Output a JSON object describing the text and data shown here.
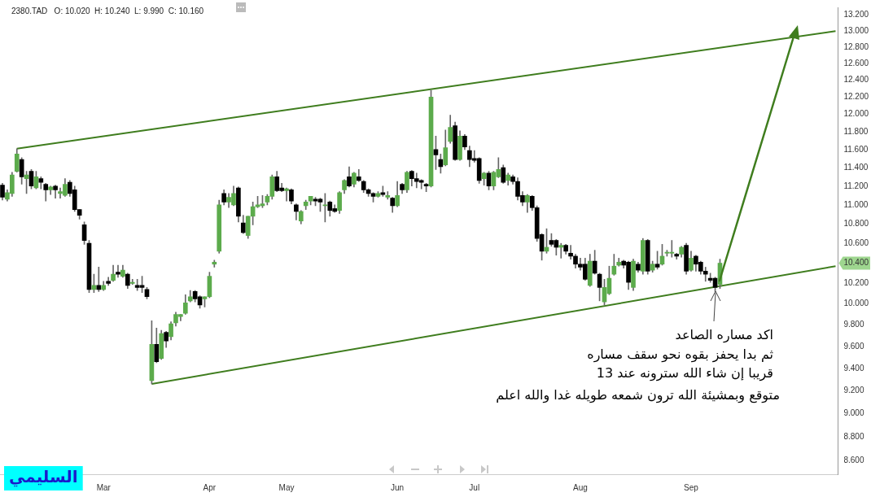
{
  "chart_data": {
    "type": "candlestick",
    "categories": [
      null,
      null,
      null,
      null,
      null,
      null,
      null,
      null,
      null,
      null,
      null,
      null,
      null,
      null,
      null,
      null,
      null,
      null,
      null,
      null,
      null,
      "Mar",
      null,
      null,
      null,
      null,
      null,
      null,
      null,
      null,
      null,
      null,
      null,
      null,
      null,
      null,
      null,
      null,
      null,
      null,
      null,
      null,
      null,
      "Apr",
      null,
      null,
      null,
      null,
      null,
      null,
      null,
      null,
      null,
      null,
      null,
      null,
      null,
      null,
      null,
      "May",
      null,
      null,
      null,
      null,
      null,
      null,
      null,
      null,
      null,
      null,
      null,
      null,
      null,
      null,
      null,
      null,
      null,
      null,
      null,
      null,
      null,
      null,
      "Jun",
      null,
      null,
      null,
      null,
      null,
      null,
      null,
      null,
      null,
      null,
      null,
      null,
      null,
      null,
      null,
      "Jul",
      null,
      null,
      null,
      null,
      null,
      null,
      null,
      null,
      null,
      null,
      null,
      null,
      null,
      null,
      null,
      null,
      null,
      null,
      null,
      null,
      null,
      "Aug",
      null,
      null,
      null,
      null,
      null,
      null,
      null,
      null,
      null,
      null,
      null,
      null,
      null,
      null,
      null,
      null,
      null,
      null,
      null,
      null,
      null,
      null,
      "Sep",
      null,
      null,
      null,
      null,
      null,
      null,
      null,
      null,
      null,
      null,
      null,
      null,
      null,
      null,
      null,
      null,
      null,
      null,
      null,
      null,
      null,
      null,
      null,
      null,
      null,
      null,
      null,
      null,
      null,
      null
    ],
    "ohlc": [
      [
        11.21,
        11.23,
        11.05,
        11.08
      ],
      [
        11.06,
        11.16,
        11.04,
        11.13
      ],
      [
        11.12,
        11.35,
        11.09,
        11.32
      ],
      [
        11.36,
        11.61,
        11.35,
        11.55
      ],
      [
        11.49,
        11.51,
        11.22,
        11.3
      ],
      [
        11.28,
        11.36,
        11.12,
        11.32
      ],
      [
        11.36,
        11.38,
        11.17,
        11.2
      ],
      [
        11.18,
        11.36,
        11.17,
        11.3
      ],
      [
        11.28,
        11.3,
        11.17,
        11.24
      ],
      [
        11.22,
        11.23,
        11.04,
        11.16
      ],
      [
        11.16,
        11.2,
        11.11,
        11.19
      ],
      [
        11.2,
        11.21,
        11.07,
        11.16
      ],
      [
        11.12,
        11.18,
        11.07,
        11.14
      ],
      [
        11.1,
        11.28,
        11.09,
        11.22
      ],
      [
        11.24,
        11.26,
        11.09,
        11.12
      ],
      [
        11.16,
        11.2,
        10.93,
        10.95
      ],
      [
        10.95,
        10.95,
        10.85,
        10.89
      ],
      [
        10.79,
        10.82,
        10.59,
        10.63
      ],
      [
        10.6,
        10.63,
        10.11,
        10.14
      ],
      [
        10.14,
        10.29,
        10.11,
        10.18
      ],
      [
        10.18,
        10.36,
        10.12,
        10.14
      ],
      [
        10.14,
        10.22,
        10.13,
        10.18
      ],
      [
        10.22,
        10.26,
        10.18,
        10.2
      ],
      [
        10.23,
        10.38,
        10.22,
        10.29
      ],
      [
        10.31,
        10.38,
        10.26,
        10.29
      ],
      [
        10.27,
        10.38,
        10.26,
        10.33
      ],
      [
        10.29,
        10.3,
        10.15,
        10.18
      ],
      [
        10.2,
        10.24,
        10.19,
        10.21
      ],
      [
        10.18,
        10.24,
        10.13,
        10.16
      ],
      [
        10.18,
        10.27,
        10.11,
        10.16
      ],
      [
        10.14,
        10.16,
        10.05,
        10.07
      ],
      [
        9.29,
        9.84,
        9.26,
        9.62
      ],
      [
        9.62,
        9.77,
        9.45,
        9.46
      ],
      [
        9.49,
        9.75,
        9.48,
        9.72
      ],
      [
        9.73,
        9.74,
        9.59,
        9.65
      ],
      [
        9.69,
        9.83,
        9.66,
        9.81
      ],
      [
        9.82,
        9.92,
        9.79,
        9.9
      ],
      [
        9.88,
        9.9,
        9.84,
        9.9
      ],
      [
        9.91,
        10.09,
        9.9,
        10.01
      ],
      [
        10.03,
        10.13,
        10.02,
        10.07
      ],
      [
        10.12,
        10.13,
        10.02,
        10.05
      ],
      [
        10.07,
        10.08,
        9.96,
        9.99
      ],
      [
        10.05,
        10.07,
        9.97,
        10.07
      ],
      [
        10.07,
        10.31,
        10.06,
        10.27
      ],
      [
        10.39,
        10.43,
        10.36,
        10.41
      ],
      [
        10.52,
        11.05,
        10.5,
        11.0
      ],
      [
        11.12,
        11.16,
        11.0,
        11.03
      ],
      [
        11.03,
        11.12,
        10.97,
        11.08
      ],
      [
        11.0,
        11.2,
        10.99,
        11.12
      ],
      [
        11.18,
        11.19,
        10.82,
        10.88
      ],
      [
        10.81,
        10.89,
        10.7,
        10.71
      ],
      [
        10.68,
        10.88,
        10.65,
        10.88
      ],
      [
        10.88,
        11.03,
        10.79,
        10.98
      ],
      [
        10.98,
        11.09,
        10.97,
        11.0
      ],
      [
        10.99,
        11.1,
        10.97,
        11.01
      ],
      [
        11.03,
        11.11,
        11.0,
        11.09
      ],
      [
        11.09,
        11.32,
        11.06,
        11.3
      ],
      [
        11.3,
        11.36,
        11.14,
        11.15
      ],
      [
        11.18,
        11.23,
        11.14,
        11.15
      ],
      [
        11.15,
        11.18,
        11.04,
        11.17
      ],
      [
        11.16,
        11.17,
        11.01,
        11.04
      ],
      [
        11.0,
        11.01,
        10.84,
        10.93
      ],
      [
        10.83,
        10.94,
        10.8,
        10.93
      ],
      [
        10.99,
        11.05,
        10.95,
        11.03
      ],
      [
        11.04,
        11.09,
        11.0,
        11.09
      ],
      [
        11.06,
        11.08,
        10.99,
        11.04
      ],
      [
        11.06,
        11.07,
        10.93,
        11.03
      ],
      [
        10.99,
        11.12,
        10.82,
        11.0
      ],
      [
        11.03,
        11.04,
        10.88,
        10.94
      ],
      [
        10.96,
        11.0,
        10.92,
        10.93
      ],
      [
        10.94,
        11.14,
        10.91,
        11.13
      ],
      [
        11.16,
        11.27,
        11.12,
        11.26
      ],
      [
        11.3,
        11.41,
        11.19,
        11.2
      ],
      [
        11.22,
        11.35,
        11.19,
        11.34
      ],
      [
        11.3,
        11.38,
        11.25,
        11.26
      ],
      [
        11.25,
        11.26,
        11.13,
        11.16
      ],
      [
        11.16,
        11.17,
        11.09,
        11.12
      ],
      [
        11.12,
        11.13,
        11.03,
        11.09
      ],
      [
        11.09,
        11.14,
        11.08,
        11.12
      ],
      [
        11.13,
        11.2,
        11.09,
        11.11
      ],
      [
        11.08,
        11.14,
        11.06,
        11.1
      ],
      [
        11.07,
        11.08,
        10.92,
        10.99
      ],
      [
        10.99,
        11.25,
        10.98,
        11.1
      ],
      [
        11.22,
        11.23,
        11.12,
        11.16
      ],
      [
        11.16,
        11.36,
        11.13,
        11.35
      ],
      [
        11.36,
        11.37,
        11.2,
        11.28
      ],
      [
        11.28,
        11.34,
        11.18,
        11.25
      ],
      [
        11.26,
        11.27,
        11.17,
        11.24
      ],
      [
        11.22,
        11.23,
        11.14,
        11.2
      ],
      [
        11.2,
        12.28,
        11.19,
        12.2
      ],
      [
        11.6,
        11.75,
        11.38,
        11.54
      ],
      [
        11.49,
        11.55,
        11.34,
        11.41
      ],
      [
        11.43,
        11.82,
        11.42,
        11.62
      ],
      [
        11.69,
        11.99,
        11.67,
        11.85
      ],
      [
        11.87,
        11.91,
        11.48,
        11.49
      ],
      [
        11.49,
        11.81,
        11.48,
        11.75
      ],
      [
        11.75,
        11.77,
        11.6,
        11.63
      ],
      [
        11.59,
        11.64,
        11.41,
        11.49
      ],
      [
        11.5,
        11.59,
        11.46,
        11.48
      ],
      [
        11.5,
        11.51,
        11.23,
        11.26
      ],
      [
        11.28,
        11.35,
        11.21,
        11.34
      ],
      [
        11.34,
        11.36,
        11.16,
        11.2
      ],
      [
        11.2,
        11.36,
        11.16,
        11.35
      ],
      [
        11.3,
        11.51,
        11.29,
        11.38
      ],
      [
        11.4,
        11.43,
        11.23,
        11.24
      ],
      [
        11.26,
        11.34,
        11.21,
        11.32
      ],
      [
        11.3,
        11.32,
        11.22,
        11.25
      ],
      [
        11.25,
        11.29,
        11.05,
        11.09
      ],
      [
        11.1,
        11.14,
        10.99,
        11.03
      ],
      [
        11.03,
        11.11,
        10.92,
        11.1
      ],
      [
        11.09,
        11.1,
        10.94,
        10.97
      ],
      [
        10.97,
        10.99,
        10.62,
        10.65
      ],
      [
        10.69,
        10.7,
        10.43,
        10.52
      ],
      [
        10.52,
        10.75,
        10.5,
        10.56
      ],
      [
        10.63,
        10.7,
        10.57,
        10.59
      ],
      [
        10.63,
        10.64,
        10.48,
        10.56
      ],
      [
        10.56,
        10.6,
        10.45,
        10.58
      ],
      [
        10.58,
        10.59,
        10.49,
        10.52
      ],
      [
        10.5,
        10.58,
        10.44,
        10.47
      ],
      [
        10.47,
        10.49,
        10.35,
        10.39
      ],
      [
        10.39,
        10.45,
        10.33,
        10.36
      ],
      [
        10.39,
        10.45,
        10.23,
        10.24
      ],
      [
        10.18,
        10.49,
        10.17,
        10.42
      ],
      [
        10.42,
        10.53,
        10.29,
        10.3
      ],
      [
        10.29,
        10.3,
        10.03,
        10.16
      ],
      [
        10.02,
        10.24,
        9.99,
        10.16
      ],
      [
        10.1,
        10.37,
        10.09,
        10.25
      ],
      [
        10.29,
        10.49,
        10.28,
        10.37
      ],
      [
        10.38,
        10.45,
        10.37,
        10.41
      ],
      [
        10.42,
        10.43,
        10.35,
        10.38
      ],
      [
        10.41,
        10.42,
        10.14,
        10.21
      ],
      [
        10.16,
        10.44,
        10.13,
        10.42
      ],
      [
        10.39,
        10.41,
        10.31,
        10.33
      ],
      [
        10.32,
        10.65,
        10.29,
        10.63
      ],
      [
        10.63,
        10.64,
        10.29,
        10.32
      ],
      [
        10.33,
        10.42,
        10.31,
        10.39
      ],
      [
        10.39,
        10.52,
        10.34,
        10.36
      ],
      [
        10.39,
        10.59,
        10.38,
        10.47
      ],
      [
        10.5,
        10.53,
        10.47,
        10.51
      ],
      [
        10.5,
        10.63,
        10.46,
        10.51
      ],
      [
        10.49,
        10.5,
        10.44,
        10.47
      ],
      [
        10.49,
        10.57,
        10.46,
        10.56
      ],
      [
        10.58,
        10.6,
        10.29,
        10.32
      ],
      [
        10.33,
        10.52,
        10.32,
        10.45
      ],
      [
        10.47,
        10.48,
        10.32,
        10.39
      ],
      [
        10.41,
        10.42,
        10.29,
        10.32
      ],
      [
        10.32,
        10.36,
        10.22,
        10.29
      ],
      [
        10.25,
        10.3,
        10.21,
        10.23
      ],
      [
        10.25,
        10.26,
        10.12,
        10.16
      ],
      [
        10.19,
        10.44,
        10.15,
        10.4
      ],
      null,
      null,
      null,
      null,
      null,
      null,
      null,
      null,
      null,
      null,
      null,
      null,
      null,
      null,
      null,
      null,
      null,
      null,
      null,
      null,
      null,
      null,
      null,
      null
    ],
    "series": [
      {
        "type": "line",
        "color": "#3f7d1e",
        "values": [
          null,
          null,
          null,
          11.61,
          null,
          null,
          null,
          null,
          null,
          null,
          null,
          null,
          null,
          null,
          null,
          null,
          null,
          null,
          null,
          null,
          null,
          null,
          null,
          null,
          null,
          null,
          null,
          null,
          null,
          null,
          null,
          null,
          null,
          null,
          null,
          null,
          null,
          null,
          null,
          null,
          null,
          null,
          null,
          null,
          null,
          null,
          null,
          null,
          null,
          null,
          null,
          null,
          null,
          null,
          null,
          null,
          null,
          null,
          null,
          null,
          null,
          null,
          null,
          null,
          null,
          null,
          null,
          null,
          null,
          null,
          null,
          null,
          null,
          null,
          null,
          null,
          null,
          null,
          null,
          null,
          null,
          null,
          null,
          null,
          null,
          null,
          null,
          null,
          null,
          null,
          null,
          null,
          null,
          null,
          null,
          null,
          null,
          null,
          null,
          null,
          null,
          null,
          null,
          null,
          null,
          null,
          null,
          null,
          null,
          null,
          null,
          null,
          null,
          null,
          null,
          null,
          null,
          null,
          null,
          null,
          null,
          null,
          null,
          null,
          null,
          null,
          null,
          null,
          null,
          null,
          null,
          null,
          null,
          null,
          null,
          null,
          null,
          null,
          null,
          null,
          null,
          null,
          null,
          null,
          null,
          null,
          null,
          null,
          null,
          null,
          null,
          null,
          null,
          null,
          null,
          null,
          null,
          null,
          null,
          null,
          null,
          null,
          null,
          null,
          null,
          null,
          null,
          null,
          null,
          null,
          null,
          null,
          null,
          13.0
        ]
      },
      {
        "type": "line",
        "color": "#3f7d1e",
        "values": [
          null,
          null,
          null,
          null,
          null,
          null,
          null,
          null,
          null,
          null,
          null,
          null,
          null,
          null,
          null,
          null,
          null,
          null,
          null,
          null,
          null,
          null,
          null,
          null,
          null,
          null,
          null,
          null,
          null,
          null,
          null,
          9.26,
          null,
          null,
          null,
          null,
          null,
          null,
          null,
          null,
          null,
          null,
          null,
          null,
          null,
          null,
          null,
          null,
          null,
          null,
          null,
          null,
          null,
          null,
          null,
          null,
          null,
          null,
          null,
          null,
          null,
          null,
          null,
          null,
          null,
          null,
          null,
          null,
          null,
          null,
          null,
          null,
          null,
          null,
          null,
          null,
          null,
          null,
          null,
          null,
          null,
          null,
          null,
          null,
          null,
          null,
          null,
          null,
          null,
          null,
          null,
          null,
          null,
          null,
          null,
          null,
          null,
          null,
          null,
          null,
          null,
          null,
          null,
          null,
          null,
          null,
          null,
          null,
          null,
          null,
          null,
          null,
          null,
          null,
          null,
          null,
          null,
          null,
          null,
          null,
          null,
          null,
          null,
          null,
          null,
          null,
          null,
          null,
          null,
          null,
          null,
          null,
          null,
          null,
          null,
          null,
          null,
          null,
          null,
          null,
          null,
          null,
          null,
          null,
          null,
          null,
          null,
          null,
          null,
          null,
          null,
          null,
          null,
          null,
          null,
          null,
          null,
          null,
          null,
          null,
          null,
          null,
          null,
          null,
          null,
          null,
          null,
          null,
          null,
          null,
          null,
          null,
          null,
          10.37
        ]
      }
    ],
    "log": "y",
    "ylim": [
      8.49,
      13.3
    ],
    "yticks": [
      {
        "value": 8.6,
        "label": "8.600"
      },
      {
        "value": 8.8,
        "label": "8.800"
      },
      {
        "value": 9.0,
        "label": "9.000"
      },
      {
        "value": 9.2,
        "label": "9.200"
      },
      {
        "value": 9.4,
        "label": "9.400"
      },
      {
        "value": 9.6,
        "label": "9.600"
      },
      {
        "value": 9.8,
        "label": "9.800"
      },
      {
        "value": 10.0,
        "label": "10.000"
      },
      {
        "value": 10.2,
        "label": "10.200"
      },
      {
        "value": 10.4,
        "label": "10.400"
      },
      {
        "value": 10.6,
        "label": "10.600"
      },
      {
        "value": 10.8,
        "label": "10.800"
      },
      {
        "value": 11.0,
        "label": "11.000"
      },
      {
        "value": 11.2,
        "label": "11.200"
      },
      {
        "value": 11.4,
        "label": "11.400"
      },
      {
        "value": 11.6,
        "label": "11.600"
      },
      {
        "value": 11.8,
        "label": "11.800"
      },
      {
        "value": 12.0,
        "label": "12.000"
      },
      {
        "value": 12.2,
        "label": "12.200"
      },
      {
        "value": 12.4,
        "label": "12.400"
      },
      {
        "value": 12.6,
        "label": "12.600"
      },
      {
        "value": 12.8,
        "label": "12.800"
      },
      {
        "value": 13.0,
        "label": "13.000"
      },
      {
        "value": 13.2,
        "label": "13.200"
      }
    ],
    "annotations": [
      "2380.TAD   O: 10.020  H: 10.240  L: 9.990  C: 10.160",
      "اكد مساره الصاعد",
      "ثم بدا يحفز بقوه نحو سقف مساره",
      "قريبا إن شاء الله سترونه عند 13",
      "متوقع وبمشيئة الله ترون شمعه طويله غدا والله اعلم",
      "السليمي"
    ]
  }
}
